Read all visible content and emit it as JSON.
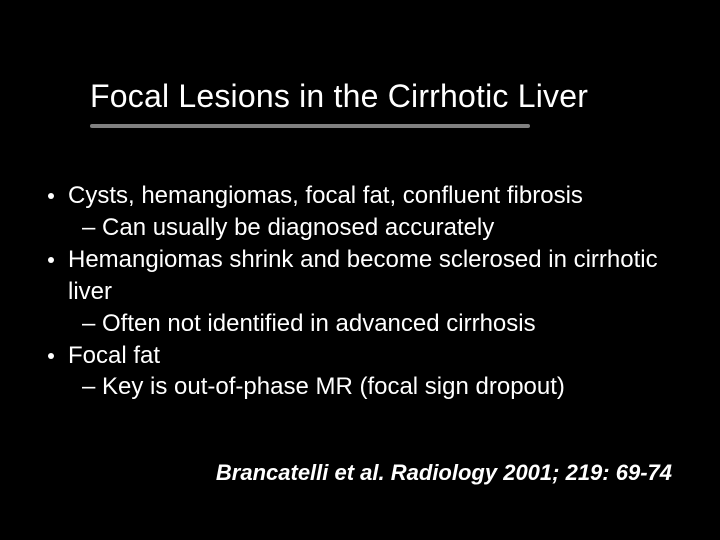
{
  "slide": {
    "background_color": "#000000",
    "text_color": "#ffffff",
    "underline_color": "#808080",
    "title": "Focal Lesions in the Cirrhotic Liver",
    "title_fontsize": 32,
    "body_fontsize": 24,
    "citation_fontsize": 22,
    "bullets": [
      {
        "text": "Cysts, hemangiomas, focal fat, confluent fibrosis",
        "subs": [
          "– Can usually be diagnosed accurately"
        ]
      },
      {
        "text": "Hemangiomas shrink and become sclerosed in cirrhotic liver",
        "subs": [
          "– Often not identified in advanced cirrhosis"
        ]
      },
      {
        "text": "Focal fat",
        "subs": [
          "– Key is out-of-phase MR (focal sign dropout)"
        ]
      }
    ],
    "citation": "Brancatelli et al. Radiology 2001; 219: 69-74"
  }
}
